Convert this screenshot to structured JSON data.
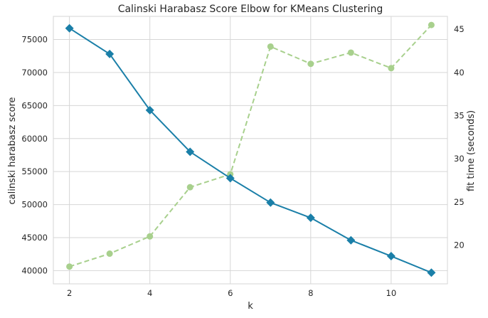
{
  "chart_data": {
    "type": "line",
    "title": "Calinski Harabasz Score Elbow for KMeans Clustering",
    "xlabel": "k",
    "ylabel": "calinski harabasz score",
    "y2label": "fit time (seconds)",
    "x": [
      2,
      3,
      4,
      5,
      6,
      7,
      8,
      9,
      10,
      11
    ],
    "xticks": [
      2,
      4,
      6,
      8,
      10
    ],
    "xlim": [
      1.6,
      11.4
    ],
    "ylim": [
      38000,
      78500
    ],
    "yticks": [
      40000,
      45000,
      50000,
      55000,
      60000,
      65000,
      70000,
      75000
    ],
    "y2lim": [
      15.5,
      46.5
    ],
    "y2ticks": [
      20,
      25,
      30,
      35,
      40,
      45
    ],
    "grid": true,
    "series": [
      {
        "axis": "left",
        "marker": "diamond",
        "line_style": "solid",
        "color": "#1a7fa8",
        "values": [
          76700,
          72800,
          64300,
          58000,
          54000,
          50300,
          48000,
          44600,
          42200,
          39700
        ]
      },
      {
        "axis": "right",
        "marker": "circle",
        "line_style": "dashed",
        "color": "#a8d08d",
        "values": [
          17.5,
          19.0,
          21.0,
          26.7,
          28.2,
          43.0,
          41.0,
          42.3,
          40.5,
          45.5
        ]
      }
    ]
  },
  "colors": {
    "grid": "#d6d6d6",
    "text": "#262626",
    "y2_text": "#a8d08d"
  }
}
